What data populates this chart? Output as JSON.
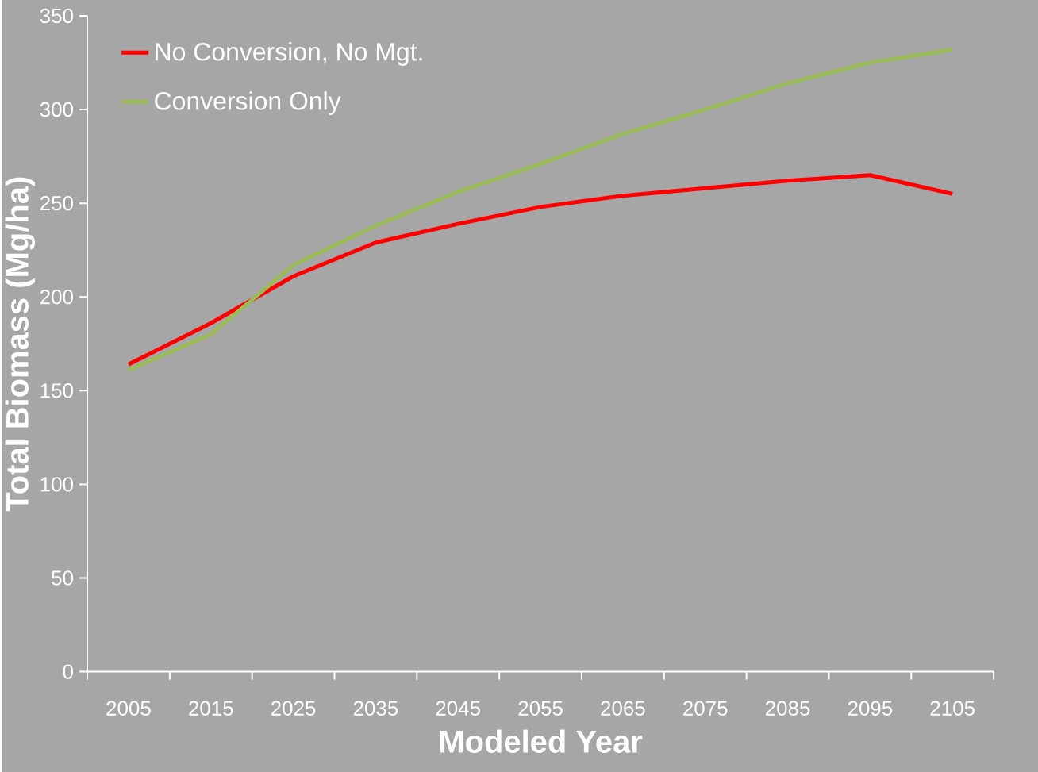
{
  "chart_data": {
    "type": "line",
    "xlabel": "Modeled Year",
    "ylabel": "Total Biomass (Mg/ha)",
    "categories": [
      "2005",
      "2015",
      "2025",
      "2035",
      "2045",
      "2055",
      "2065",
      "2075",
      "2085",
      "2095",
      "2105"
    ],
    "series": [
      {
        "name": "No Conversion, No Mgt.",
        "color": "#ff0000",
        "values": [
          164,
          186,
          211,
          229,
          239,
          248,
          254,
          258,
          262,
          265,
          255
        ]
      },
      {
        "name": "Conversion Only",
        "color": "#9bbb59",
        "values": [
          161,
          180,
          217,
          238,
          256,
          271,
          287,
          300,
          314,
          325,
          332
        ]
      }
    ],
    "ylim": [
      0,
      350
    ],
    "yticks": [
      0,
      50,
      100,
      150,
      200,
      250,
      300,
      350
    ],
    "legend": "top left",
    "marker": "none",
    "line_style": "solid"
  }
}
